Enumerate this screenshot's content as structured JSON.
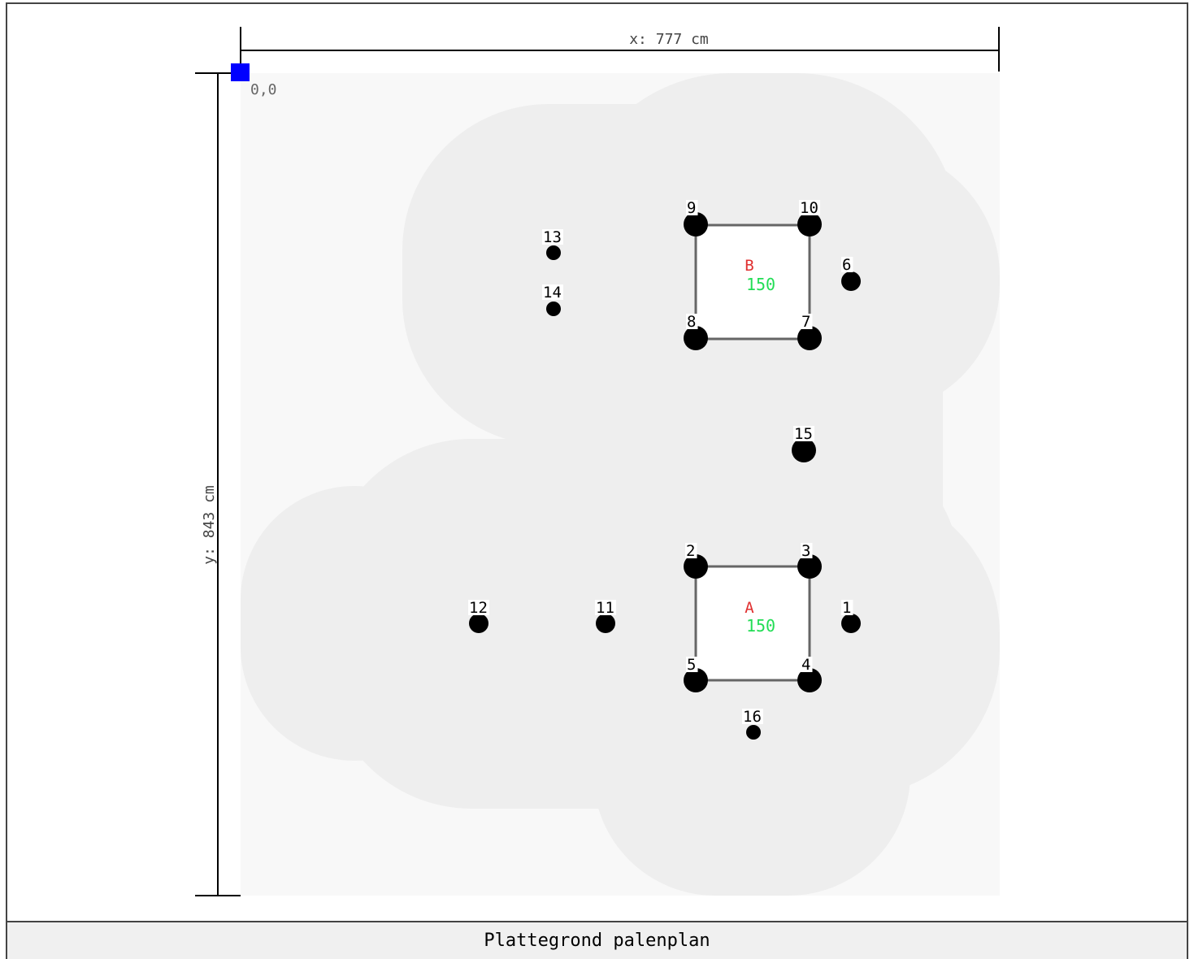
{
  "plan": {
    "x_dimension_label": "x: 777 cm",
    "y_dimension_label": "y: 843 cm",
    "origin_label": "0,0",
    "caption": "Plattegrond palenplan",
    "colors": {
      "site_background": "#f8f8f8",
      "influence_zone": "#eeeeee",
      "pile": "#000000",
      "cap_outline": "#666666",
      "cap_name": "#e03030",
      "cap_size": "#22dd55",
      "origin_marker": "#0000ff"
    }
  },
  "pile_caps": [
    {
      "name": "A",
      "size": "150"
    },
    {
      "name": "B",
      "size": "150"
    }
  ],
  "piles": [
    {
      "label": "1"
    },
    {
      "label": "2"
    },
    {
      "label": "3"
    },
    {
      "label": "4"
    },
    {
      "label": "5"
    },
    {
      "label": "6"
    },
    {
      "label": "7"
    },
    {
      "label": "8"
    },
    {
      "label": "9"
    },
    {
      "label": "10"
    },
    {
      "label": "11"
    },
    {
      "label": "12"
    },
    {
      "label": "13"
    },
    {
      "label": "14"
    },
    {
      "label": "15"
    },
    {
      "label": "16"
    }
  ]
}
